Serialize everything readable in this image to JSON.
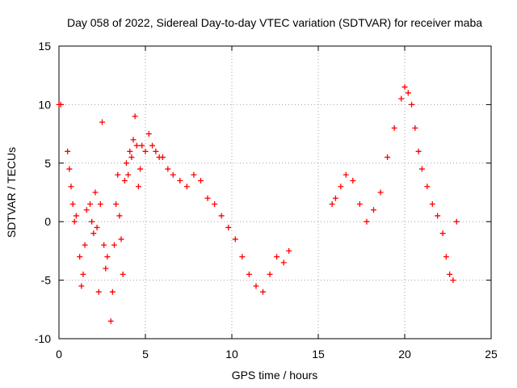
{
  "chart_data": {
    "type": "scatter",
    "title": "Day 058 of 2022, Sidereal Day-to-day VTEC variation (SDTVAR) for receiver maba",
    "xlabel": "GPS time / hours",
    "ylabel": "SDTVAR / TECUs",
    "xlim": [
      0,
      25
    ],
    "ylim": [
      -10,
      15
    ],
    "x_ticks": [
      0,
      5,
      10,
      15,
      20,
      25
    ],
    "y_ticks": [
      -10,
      -5,
      0,
      5,
      10,
      15
    ],
    "x_tick_labels": [
      "0",
      "5",
      "10",
      "15",
      "20",
      "25"
    ],
    "y_tick_labels": [
      "-10",
      "-5",
      "0",
      "5",
      "10",
      "15"
    ],
    "grid": true,
    "marker": "+",
    "marker_color": "#ff0000",
    "series": [
      {
        "name": "SDTVAR",
        "x": [
          0.0,
          0.1,
          0.5,
          0.6,
          0.7,
          0.8,
          0.9,
          1.0,
          1.2,
          1.3,
          1.4,
          1.5,
          1.6,
          1.8,
          1.9,
          2.0,
          2.1,
          2.2,
          2.3,
          2.4,
          2.5,
          2.6,
          2.7,
          2.8,
          3.0,
          3.1,
          3.2,
          3.3,
          3.4,
          3.5,
          3.6,
          3.7,
          3.8,
          3.9,
          4.0,
          4.1,
          4.2,
          4.3,
          4.4,
          4.5,
          4.6,
          4.7,
          4.8,
          5.0,
          5.2,
          5.4,
          5.6,
          5.8,
          6.0,
          6.3,
          6.6,
          7.0,
          7.4,
          7.8,
          8.2,
          8.6,
          9.0,
          9.4,
          9.8,
          10.2,
          10.6,
          11.0,
          11.4,
          11.8,
          12.2,
          12.6,
          13.0,
          13.3,
          15.8,
          16.0,
          16.3,
          16.6,
          17.0,
          17.4,
          17.8,
          18.2,
          18.6,
          19.0,
          19.4,
          19.8,
          20.0,
          20.2,
          20.4,
          20.6,
          20.8,
          21.0,
          21.3,
          21.6,
          21.9,
          22.2,
          22.4,
          22.6,
          22.8,
          23.0
        ],
        "y": [
          10.0,
          10.0,
          6.0,
          4.5,
          3.0,
          1.5,
          0.0,
          0.5,
          -3.0,
          -5.5,
          -4.5,
          -2.0,
          1.0,
          1.5,
          0.0,
          -1.0,
          2.5,
          -0.5,
          -6.0,
          1.5,
          8.5,
          -2.0,
          -4.0,
          -3.0,
          -8.5,
          -6.0,
          -2.0,
          1.5,
          4.0,
          0.5,
          -1.5,
          -4.5,
          3.5,
          5.0,
          4.0,
          6.0,
          5.5,
          7.0,
          9.0,
          6.5,
          3.0,
          4.5,
          6.5,
          6.0,
          7.5,
          6.5,
          6.0,
          5.5,
          5.5,
          4.5,
          4.0,
          3.5,
          3.0,
          4.0,
          3.5,
          2.0,
          1.5,
          0.5,
          -0.5,
          -1.5,
          -3.0,
          -4.5,
          -5.5,
          -6.0,
          -4.5,
          -3.0,
          -3.5,
          -2.5,
          1.5,
          2.0,
          3.0,
          4.0,
          3.5,
          1.5,
          0.0,
          1.0,
          2.5,
          5.5,
          8.0,
          10.5,
          11.5,
          11.0,
          10.0,
          8.0,
          6.0,
          4.5,
          3.0,
          1.5,
          0.5,
          -1.0,
          -3.0,
          -4.5,
          -5.0,
          0.0
        ]
      }
    ]
  }
}
